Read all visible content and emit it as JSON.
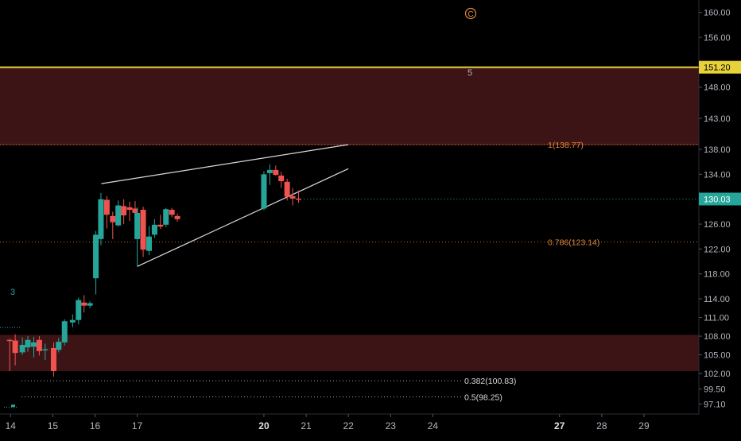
{
  "chart_data": {
    "type": "candlestick",
    "title": "",
    "xlabel": "",
    "ylabel": "",
    "ylim": [
      95.5,
      162
    ],
    "xlim": [
      13.75,
      30.3
    ],
    "x_ticks": [
      {
        "v": 14,
        "label": "14"
      },
      {
        "v": 15,
        "label": "15"
      },
      {
        "v": 16,
        "label": "16"
      },
      {
        "v": 17,
        "label": "17"
      },
      {
        "v": 20,
        "label": "20",
        "bold": true
      },
      {
        "v": 21,
        "label": "21"
      },
      {
        "v": 22,
        "label": "22"
      },
      {
        "v": 23,
        "label": "23"
      },
      {
        "v": 24,
        "label": "24"
      },
      {
        "v": 27,
        "label": "27",
        "bold": true
      },
      {
        "v": 28,
        "label": "28"
      },
      {
        "v": 29,
        "label": "29"
      }
    ],
    "y_ticks": [
      {
        "v": 160,
        "label": "160.00"
      },
      {
        "v": 156,
        "label": "156.00"
      },
      {
        "v": 148,
        "label": "148.00"
      },
      {
        "v": 143,
        "label": "143.00"
      },
      {
        "v": 138,
        "label": "138.00"
      },
      {
        "v": 134,
        "label": "134.00"
      },
      {
        "v": 126,
        "label": "126.00"
      },
      {
        "v": 122,
        "label": "122.00"
      },
      {
        "v": 118,
        "label": "118.00"
      },
      {
        "v": 114,
        "label": "114.00"
      },
      {
        "v": 111,
        "label": "111.00"
      },
      {
        "v": 108,
        "label": "108.00"
      },
      {
        "v": 105,
        "label": "105.00"
      },
      {
        "v": 102,
        "label": "102.00"
      },
      {
        "v": 99.5,
        "label": "99.50"
      },
      {
        "v": 97.1,
        "label": "97.10"
      }
    ],
    "colors": {
      "up": "#26a69a",
      "down": "#ef5350",
      "zone": "#3d1416",
      "resistance": "#e8d23a",
      "fib": "#e0883a",
      "fib_white": "#d8d8d8",
      "wedge": "#d9d9d9",
      "text": "#b2b5be",
      "wave": "#26a69a",
      "wave_c": "#e0883a"
    },
    "candles": [
      {
        "x": 13.98,
        "o": 107.4,
        "h": 107.6,
        "l": 102.4,
        "c": 107.3
      },
      {
        "x": 14.11,
        "o": 107.3,
        "h": 108.3,
        "l": 103.3,
        "c": 105.3
      },
      {
        "x": 14.28,
        "o": 105.4,
        "h": 107.8,
        "l": 105.0,
        "c": 106.6
      },
      {
        "x": 14.41,
        "o": 106.2,
        "h": 108.0,
        "l": 105.5,
        "c": 107.4
      },
      {
        "x": 14.55,
        "o": 106.3,
        "h": 107.9,
        "l": 104.6,
        "c": 107.0
      },
      {
        "x": 14.68,
        "o": 107.4,
        "h": 108.0,
        "l": 104.9,
        "c": 105.6
      },
      {
        "x": 14.82,
        "o": 105.8,
        "h": 106.8,
        "l": 104.2,
        "c": 105.9
      },
      {
        "x": 15.02,
        "o": 106.1,
        "h": 107.0,
        "l": 101.5,
        "c": 102.4
      },
      {
        "x": 15.14,
        "o": 105.8,
        "h": 107.7,
        "l": 105.4,
        "c": 107.1
      },
      {
        "x": 15.28,
        "o": 107.0,
        "h": 110.7,
        "l": 106.5,
        "c": 110.4
      },
      {
        "x": 15.47,
        "o": 110.2,
        "h": 111.5,
        "l": 109.4,
        "c": 110.6
      },
      {
        "x": 15.61,
        "o": 110.6,
        "h": 114.2,
        "l": 109.9,
        "c": 113.8
      },
      {
        "x": 15.74,
        "o": 113.4,
        "h": 114.6,
        "l": 111.8,
        "c": 112.9
      },
      {
        "x": 15.88,
        "o": 112.9,
        "h": 113.6,
        "l": 112.5,
        "c": 113.3
      },
      {
        "x": 16.02,
        "o": 117.3,
        "h": 124.9,
        "l": 114.7,
        "c": 124.3
      },
      {
        "x": 16.14,
        "o": 123.6,
        "h": 131.0,
        "l": 122.6,
        "c": 130.0
      },
      {
        "x": 16.28,
        "o": 129.9,
        "h": 130.5,
        "l": 125.3,
        "c": 127.5
      },
      {
        "x": 16.42,
        "o": 127.3,
        "h": 128.0,
        "l": 123.6,
        "c": 126.3
      },
      {
        "x": 16.55,
        "o": 125.8,
        "h": 129.8,
        "l": 125.6,
        "c": 129.0
      },
      {
        "x": 16.68,
        "o": 128.9,
        "h": 130.0,
        "l": 126.0,
        "c": 127.4
      },
      {
        "x": 16.82,
        "o": 128.7,
        "h": 129.6,
        "l": 126.5,
        "c": 128.3
      },
      {
        "x": 16.95,
        "o": 128.5,
        "h": 129.7,
        "l": 127.1,
        "c": 127.8
      },
      {
        "x": 17.0,
        "o": 123.6,
        "h": 128.7,
        "l": 119.3,
        "c": 127.8
      },
      {
        "x": 17.14,
        "o": 128.3,
        "h": 128.8,
        "l": 120.7,
        "c": 121.9
      },
      {
        "x": 17.28,
        "o": 121.7,
        "h": 125.7,
        "l": 121.0,
        "c": 124.0
      },
      {
        "x": 17.41,
        "o": 124.3,
        "h": 126.8,
        "l": 123.8,
        "c": 125.9
      },
      {
        "x": 17.55,
        "o": 125.9,
        "h": 127.5,
        "l": 125.2,
        "c": 125.6
      },
      {
        "x": 17.68,
        "o": 125.9,
        "h": 128.6,
        "l": 125.5,
        "c": 128.4
      },
      {
        "x": 17.82,
        "o": 128.3,
        "h": 128.6,
        "l": 127.1,
        "c": 127.5
      },
      {
        "x": 17.95,
        "o": 127.3,
        "h": 127.7,
        "l": 126.4,
        "c": 126.8
      },
      {
        "x": 20.0,
        "o": 128.5,
        "h": 134.5,
        "l": 128.2,
        "c": 134.0
      },
      {
        "x": 20.14,
        "o": 134.2,
        "h": 135.6,
        "l": 132.3,
        "c": 134.7
      },
      {
        "x": 20.28,
        "o": 134.7,
        "h": 135.4,
        "l": 133.8,
        "c": 133.9
      },
      {
        "x": 20.41,
        "o": 133.8,
        "h": 134.4,
        "l": 131.8,
        "c": 132.9
      },
      {
        "x": 20.55,
        "o": 132.8,
        "h": 133.3,
        "l": 129.8,
        "c": 130.4
      },
      {
        "x": 20.68,
        "o": 130.5,
        "h": 131.8,
        "l": 129.0,
        "c": 130.1
      },
      {
        "x": 20.82,
        "o": 130.1,
        "h": 131.4,
        "l": 129.4,
        "c": 130.03
      }
    ]
  },
  "price_axis": {
    "resistance_label": "151.20",
    "current_label": "130.03"
  },
  "levels": {
    "resistance": 151.2,
    "zone_upper": [
      138.77,
      151.2
    ],
    "zone_lower": [
      102.4,
      108.2
    ],
    "current": 130.03
  },
  "fib": [
    {
      "value": 138.77,
      "label": "1(138.77)",
      "color": "orange"
    },
    {
      "value": 123.14,
      "label": "0.786(123.14)",
      "color": "orange"
    },
    {
      "value": 100.83,
      "label": "0.382(100.83)",
      "color": "white"
    },
    {
      "value": 98.25,
      "label": "0.5(98.25)",
      "color": "white"
    }
  ],
  "wedge": {
    "upper": [
      [
        16.15,
        132.5
      ],
      [
        22.0,
        138.77
      ]
    ],
    "lower": [
      [
        17.0,
        119.2
      ],
      [
        22.0,
        134.9
      ]
    ]
  },
  "wave_labels": {
    "three": "3",
    "five": "5",
    "c": "C"
  }
}
